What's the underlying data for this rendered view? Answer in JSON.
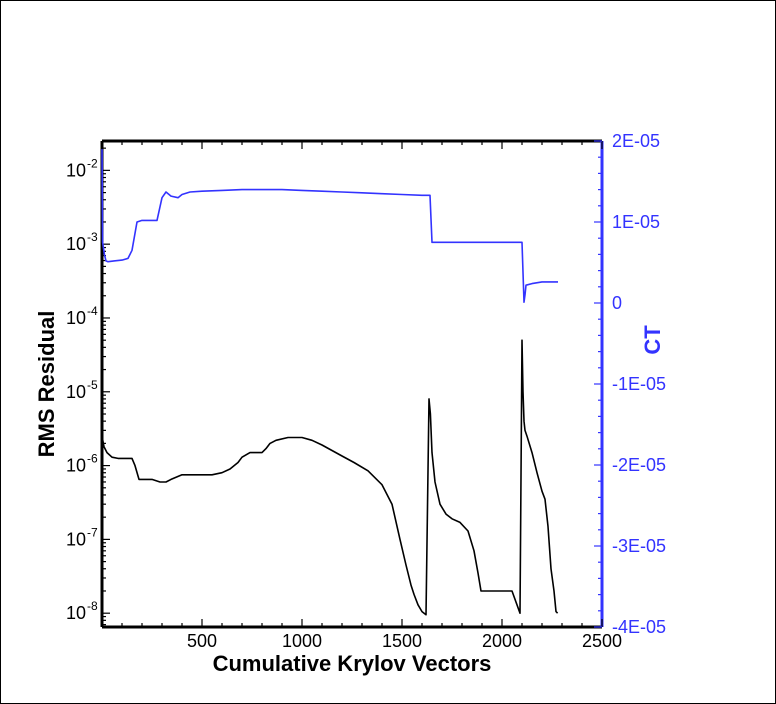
{
  "chart_data": {
    "type": "line",
    "title": "",
    "xlabel": "Cumulative Krylov Vectors",
    "ylabel_left": "RMS Residual",
    "ylabel_right": "CT",
    "xlim": [
      0,
      2500
    ],
    "x_ticks": [
      "500",
      "1000",
      "1500",
      "2000",
      "2500"
    ],
    "left_axis": {
      "scale": "log",
      "ylim": [
        6.5e-09,
        0.025
      ],
      "ticks": [
        {
          "value": 0.01,
          "label": "10",
          "exp": "-2"
        },
        {
          "value": 0.001,
          "label": "10",
          "exp": "-3"
        },
        {
          "value": 0.0001,
          "label": "10",
          "exp": "-4"
        },
        {
          "value": 1e-05,
          "label": "10",
          "exp": "-5"
        },
        {
          "value": 1e-06,
          "label": "10",
          "exp": "-6"
        },
        {
          "value": 1e-07,
          "label": "10",
          "exp": "-7"
        },
        {
          "value": 1e-08,
          "label": "10",
          "exp": "-8"
        }
      ]
    },
    "right_axis": {
      "scale": "linear",
      "ylim": [
        -4e-05,
        2e-05
      ],
      "color": "#3333ff",
      "ticks": [
        {
          "value": 2e-05,
          "label": "2E-05"
        },
        {
          "value": 1e-05,
          "label": "1E-05"
        },
        {
          "value": 0,
          "label": "0"
        },
        {
          "value": -1e-05,
          "label": "-1E-05"
        },
        {
          "value": -2e-05,
          "label": "-2E-05"
        },
        {
          "value": -3e-05,
          "label": "-3E-05"
        },
        {
          "value": -4e-05,
          "label": "-4E-05"
        }
      ]
    },
    "series": [
      {
        "axis": "left",
        "color": "#000000",
        "x": [
          0,
          10,
          25,
          50,
          80,
          120,
          150,
          165,
          185,
          250,
          290,
          320,
          345,
          400,
          450,
          500,
          550,
          600,
          640,
          680,
          700,
          740,
          760,
          800,
          820,
          840,
          870,
          930,
          1000,
          1050,
          1100,
          1150,
          1200,
          1260,
          1330,
          1400,
          1450,
          1490,
          1520,
          1545,
          1560,
          1580,
          1600,
          1620,
          1635,
          1642,
          1650,
          1665,
          1690,
          1720,
          1750,
          1790,
          1830,
          1860,
          1880,
          1895,
          1900,
          1950,
          2000,
          2050,
          2090,
          2100,
          2105,
          2110,
          2115,
          2125,
          2150,
          2175,
          2200,
          2215,
          2230,
          2245,
          2260,
          2270,
          2278
        ],
        "y": [
          2.5e-06,
          1.8e-06,
          1.5e-06,
          1.3e-06,
          1.25e-06,
          1.25e-06,
          1.25e-06,
          1e-06,
          6.5e-07,
          6.5e-07,
          6e-07,
          6e-07,
          6.5e-07,
          7.5e-07,
          7.5e-07,
          7.5e-07,
          7.5e-07,
          8e-07,
          9e-07,
          1.1e-06,
          1.3e-06,
          1.5e-06,
          1.5e-06,
          1.5e-06,
          1.7e-06,
          2e-06,
          2.2e-06,
          2.4e-06,
          2.4e-06,
          2.2e-06,
          1.9e-06,
          1.6e-06,
          1.35e-06,
          1.1e-06,
          8.5e-07,
          5.5e-07,
          3e-07,
          1e-07,
          4.5e-08,
          2.4e-08,
          1.8e-08,
          1.3e-08,
          1.05e-08,
          9.5e-09,
          8e-06,
          5e-06,
          1.5e-06,
          6e-07,
          3e-07,
          2.2e-07,
          1.9e-07,
          1.7e-07,
          1.3e-07,
          7e-08,
          3.5e-08,
          2e-08,
          2e-08,
          2e-08,
          2e-08,
          2e-08,
          1e-08,
          5e-05,
          1e-05,
          4e-06,
          3e-06,
          2.5e-06,
          1.5e-06,
          8e-07,
          4.5e-07,
          3.5e-07,
          1.5e-07,
          4e-08,
          2e-08,
          1.05e-08,
          1e-08
        ]
      },
      {
        "axis": "right",
        "color": "#3333ff",
        "x": [
          0,
          3,
          12,
          20,
          30,
          60,
          100,
          130,
          150,
          175,
          200,
          255,
          275,
          300,
          320,
          345,
          380,
          400,
          440,
          500,
          600,
          700,
          800,
          900,
          1000,
          1100,
          1200,
          1300,
          1400,
          1500,
          1600,
          1640,
          1650,
          1700,
          1800,
          1900,
          2000,
          2050,
          2100,
          2110,
          2115,
          2120,
          2150,
          2200,
          2250,
          2280
        ],
        "y": [
          1.9e-05,
          7.5e-06,
          6e-06,
          5.2e-06,
          5.1e-06,
          5.2e-06,
          5.3e-06,
          5.5e-06,
          6.5e-06,
          1e-05,
          1.02e-05,
          1.02e-05,
          1.02e-05,
          1.3e-05,
          1.37e-05,
          1.32e-05,
          1.3e-05,
          1.34e-05,
          1.37e-05,
          1.38e-05,
          1.39e-05,
          1.4e-05,
          1.4e-05,
          1.4e-05,
          1.39e-05,
          1.38e-05,
          1.37e-05,
          1.36e-05,
          1.35e-05,
          1.34e-05,
          1.33e-05,
          1.33e-05,
          7.5e-06,
          7.5e-06,
          7.5e-06,
          7.5e-06,
          7.5e-06,
          7.5e-06,
          7.5e-06,
          1e-07,
          1e-06,
          2.2e-06,
          2.4e-06,
          2.6e-06,
          2.6e-06,
          2.6e-06
        ]
      }
    ]
  }
}
